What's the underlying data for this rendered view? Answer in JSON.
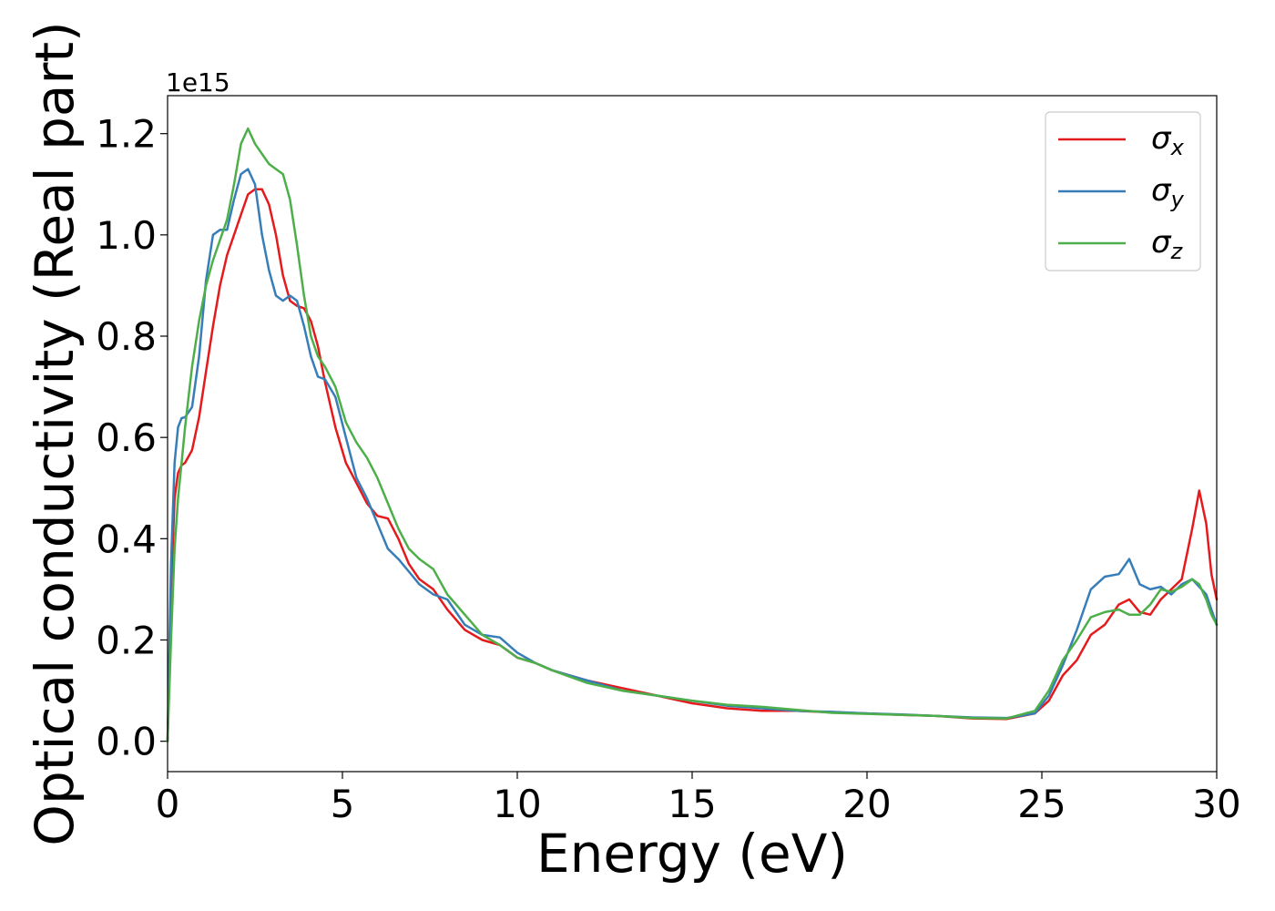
{
  "chart_data": {
    "type": "line",
    "title": "",
    "xlabel": "Energy (eV)",
    "ylabel": "Optical conductivity (Real part)",
    "offset_label": "1e15",
    "xlim": [
      0,
      30
    ],
    "ylim": [
      -0.06,
      1.275
    ],
    "xticks": [
      0,
      5,
      10,
      15,
      20,
      25,
      30
    ],
    "xtick_labels": [
      "0",
      "5",
      "10",
      "15",
      "20",
      "25",
      "30"
    ],
    "yticks": [
      0.0,
      0.2,
      0.4,
      0.6,
      0.8,
      1.0,
      1.2
    ],
    "ytick_labels": [
      "0.0",
      "0.2",
      "0.4",
      "0.6",
      "0.8",
      "1.0",
      "1.2"
    ],
    "grid": false,
    "legend_position": "top-right",
    "series": [
      {
        "name": "σx",
        "symbol": "σ",
        "subscript": "x",
        "color": "#e41a1c",
        "x": [
          0,
          0.1,
          0.2,
          0.3,
          0.4,
          0.5,
          0.7,
          0.9,
          1.1,
          1.3,
          1.5,
          1.7,
          1.9,
          2.1,
          2.3,
          2.5,
          2.7,
          2.9,
          3.1,
          3.3,
          3.5,
          3.7,
          3.9,
          4.1,
          4.3,
          4.5,
          4.8,
          5.1,
          5.4,
          5.7,
          6.0,
          6.3,
          6.6,
          6.9,
          7.2,
          7.6,
          8.0,
          8.5,
          9.0,
          9.5,
          10.0,
          10.5,
          11,
          12,
          13,
          14,
          15,
          16,
          17,
          18,
          19,
          20,
          21,
          22,
          23,
          24,
          24.8,
          25.2,
          25.6,
          26.0,
          26.4,
          26.8,
          27.2,
          27.5,
          27.8,
          28.1,
          28.4,
          28.7,
          29.0,
          29.3,
          29.5,
          29.7,
          29.85,
          30
        ],
        "y": [
          0.0,
          0.3,
          0.48,
          0.53,
          0.545,
          0.55,
          0.575,
          0.64,
          0.73,
          0.82,
          0.9,
          0.96,
          1.0,
          1.04,
          1.08,
          1.09,
          1.09,
          1.06,
          1.0,
          0.92,
          0.87,
          0.86,
          0.855,
          0.83,
          0.78,
          0.71,
          0.62,
          0.55,
          0.51,
          0.47,
          0.445,
          0.44,
          0.4,
          0.35,
          0.32,
          0.3,
          0.26,
          0.22,
          0.2,
          0.19,
          0.165,
          0.155,
          0.14,
          0.12,
          0.105,
          0.09,
          0.075,
          0.065,
          0.06,
          0.06,
          0.057,
          0.055,
          0.052,
          0.05,
          0.045,
          0.044,
          0.055,
          0.08,
          0.13,
          0.16,
          0.21,
          0.23,
          0.27,
          0.28,
          0.255,
          0.25,
          0.28,
          0.3,
          0.32,
          0.42,
          0.495,
          0.43,
          0.33,
          0.28
        ]
      },
      {
        "name": "σy",
        "symbol": "σ",
        "subscript": "y",
        "color": "#377eb8",
        "x": [
          0,
          0.1,
          0.2,
          0.3,
          0.4,
          0.5,
          0.7,
          0.9,
          1.1,
          1.3,
          1.5,
          1.7,
          1.9,
          2.1,
          2.3,
          2.5,
          2.7,
          2.9,
          3.1,
          3.3,
          3.5,
          3.7,
          3.9,
          4.1,
          4.3,
          4.5,
          4.8,
          5.1,
          5.4,
          5.7,
          6.0,
          6.3,
          6.6,
          6.9,
          7.2,
          7.6,
          8.0,
          8.5,
          9.0,
          9.5,
          10.0,
          10.5,
          11,
          12,
          13,
          14,
          15,
          16,
          17,
          18,
          19,
          20,
          21,
          22,
          23,
          24,
          24.8,
          25.2,
          25.6,
          26.0,
          26.4,
          26.8,
          27.2,
          27.5,
          27.8,
          28.1,
          28.4,
          28.7,
          29.0,
          29.3,
          29.5,
          29.7,
          29.85,
          30
        ],
        "y": [
          0.0,
          0.35,
          0.55,
          0.62,
          0.638,
          0.64,
          0.66,
          0.76,
          0.91,
          1.0,
          1.01,
          1.01,
          1.07,
          1.12,
          1.13,
          1.1,
          1.0,
          0.93,
          0.88,
          0.87,
          0.88,
          0.87,
          0.82,
          0.76,
          0.72,
          0.715,
          0.68,
          0.6,
          0.52,
          0.48,
          0.43,
          0.38,
          0.36,
          0.335,
          0.31,
          0.29,
          0.28,
          0.23,
          0.21,
          0.205,
          0.175,
          0.155,
          0.14,
          0.12,
          0.1,
          0.09,
          0.08,
          0.07,
          0.065,
          0.06,
          0.058,
          0.055,
          0.053,
          0.05,
          0.047,
          0.046,
          0.055,
          0.09,
          0.15,
          0.22,
          0.3,
          0.325,
          0.33,
          0.36,
          0.31,
          0.3,
          0.305,
          0.29,
          0.31,
          0.32,
          0.305,
          0.29,
          0.26,
          0.23
        ]
      },
      {
        "name": "σz",
        "symbol": "σ",
        "subscript": "z",
        "color": "#4daf4a",
        "x": [
          0,
          0.1,
          0.2,
          0.3,
          0.4,
          0.5,
          0.7,
          0.9,
          1.1,
          1.3,
          1.5,
          1.7,
          1.9,
          2.1,
          2.3,
          2.5,
          2.7,
          2.9,
          3.1,
          3.3,
          3.5,
          3.7,
          3.9,
          4.1,
          4.3,
          4.5,
          4.8,
          5.1,
          5.4,
          5.7,
          6.0,
          6.3,
          6.6,
          6.9,
          7.2,
          7.6,
          8.0,
          8.5,
          9.0,
          9.5,
          10.0,
          10.5,
          11,
          12,
          13,
          14,
          15,
          16,
          17,
          18,
          19,
          20,
          21,
          22,
          23,
          24,
          24.8,
          25.2,
          25.6,
          26.0,
          26.4,
          26.8,
          27.2,
          27.5,
          27.8,
          28.1,
          28.4,
          28.7,
          29.0,
          29.3,
          29.5,
          29.7,
          29.85,
          30
        ],
        "y": [
          0.0,
          0.2,
          0.38,
          0.48,
          0.55,
          0.62,
          0.74,
          0.83,
          0.9,
          0.95,
          0.99,
          1.03,
          1.1,
          1.18,
          1.21,
          1.18,
          1.16,
          1.14,
          1.13,
          1.12,
          1.07,
          0.98,
          0.88,
          0.8,
          0.76,
          0.74,
          0.7,
          0.63,
          0.59,
          0.56,
          0.52,
          0.47,
          0.42,
          0.38,
          0.36,
          0.34,
          0.29,
          0.25,
          0.21,
          0.19,
          0.165,
          0.155,
          0.14,
          0.115,
          0.1,
          0.09,
          0.08,
          0.072,
          0.068,
          0.062,
          0.056,
          0.054,
          0.052,
          0.05,
          0.046,
          0.045,
          0.06,
          0.1,
          0.16,
          0.2,
          0.245,
          0.255,
          0.26,
          0.25,
          0.25,
          0.27,
          0.3,
          0.295,
          0.305,
          0.32,
          0.31,
          0.28,
          0.25,
          0.23
        ]
      }
    ]
  }
}
